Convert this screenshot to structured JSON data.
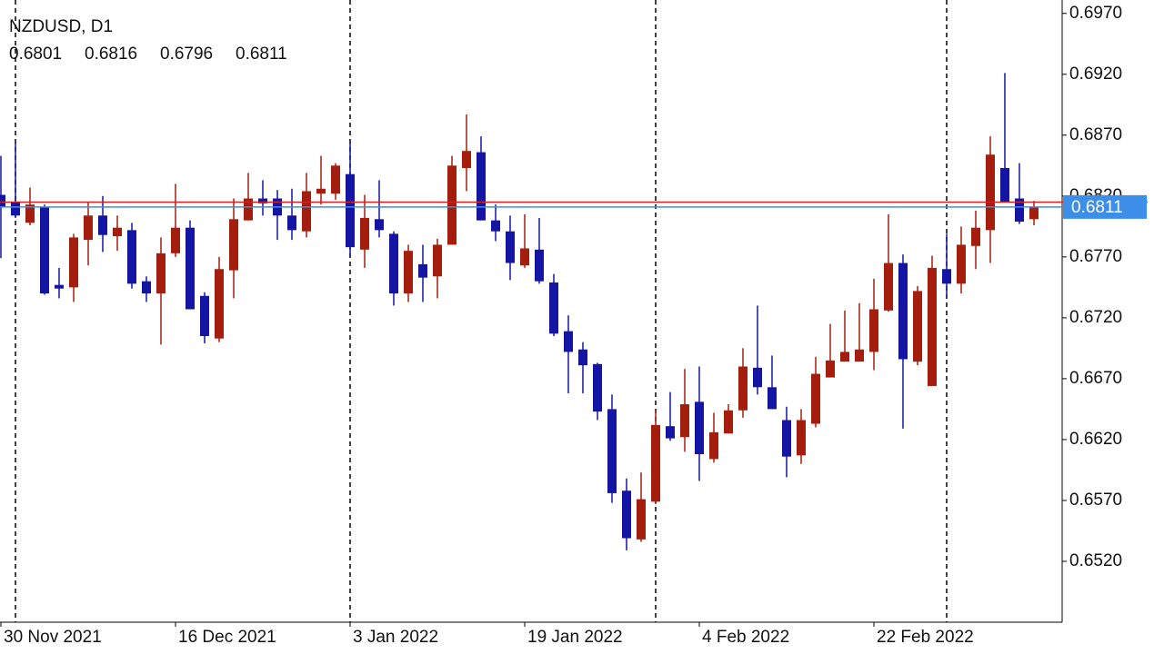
{
  "chart_data": {
    "type": "candlestick",
    "title": "NZDUSD, D1",
    "categories": [
      "30 Nov 2021",
      null,
      null,
      null,
      null,
      null,
      null,
      null,
      null,
      null,
      null,
      null,
      "16 Dec 2021",
      null,
      null,
      null,
      null,
      null,
      null,
      null,
      null,
      null,
      null,
      null,
      "3 Jan 2022",
      null,
      null,
      null,
      null,
      null,
      null,
      null,
      null,
      null,
      null,
      null,
      "19 Jan 2022",
      null,
      null,
      null,
      null,
      null,
      null,
      null,
      null,
      null,
      null,
      null,
      "4 Feb 2022",
      null,
      null,
      null,
      null,
      null,
      null,
      null,
      null,
      null,
      null,
      null,
      "22 Feb 2022",
      null,
      null,
      null,
      null,
      null,
      null,
      null,
      null,
      null,
      null,
      null
    ],
    "open": [
      0.6821,
      0.6815,
      0.6798,
      0.6811,
      0.6747,
      0.6745,
      0.6784,
      0.6804,
      0.6787,
      0.6792,
      0.675,
      0.674,
      0.6773,
      0.6794,
      0.6738,
      0.6703,
      0.6759,
      0.68,
      0.6818,
      0.6818,
      0.6804,
      0.6791,
      0.6822,
      0.6822,
      0.6838,
      0.6776,
      0.6801,
      0.6789,
      0.674,
      0.6764,
      0.6754,
      0.678,
      0.6843,
      0.6856,
      0.68,
      0.6791,
      0.6763,
      0.6776,
      0.6749,
      0.6709,
      0.6694,
      0.6682,
      0.6645,
      0.6578,
      0.6538,
      0.6569,
      0.6631,
      0.6622,
      0.6651,
      0.6604,
      0.6625,
      0.6644,
      0.6679,
      0.6663,
      0.6636,
      0.6607,
      0.6633,
      0.6671,
      0.6684,
      0.6684,
      0.6692,
      0.6726,
      0.6765,
      0.6684,
      0.6664,
      0.676,
      0.6748,
      0.6779,
      0.6792,
      0.6843,
      0.6818,
      0.6801
    ],
    "high": [
      0.6853,
      0.6864,
      0.6827,
      0.6813,
      0.6761,
      0.6789,
      0.6815,
      0.682,
      0.6804,
      0.6798,
      0.6754,
      0.6786,
      0.683,
      0.68,
      0.6741,
      0.677,
      0.6818,
      0.6839,
      0.6833,
      0.6825,
      0.6826,
      0.6839,
      0.6853,
      0.6847,
      0.6864,
      0.6821,
      0.6833,
      0.6791,
      0.678,
      0.678,
      0.6785,
      0.6853,
      0.6887,
      0.6869,
      0.6813,
      0.6804,
      0.6805,
      0.6802,
      0.6756,
      0.6722,
      0.67,
      0.6683,
      0.6657,
      0.6588,
      0.6593,
      0.6644,
      0.6659,
      0.6678,
      0.668,
      0.6642,
      0.6649,
      0.6695,
      0.673,
      0.6689,
      0.6647,
      0.6645,
      0.6688,
      0.6715,
      0.6726,
      0.6732,
      0.6752,
      0.6805,
      0.6772,
      0.6746,
      0.6771,
      0.6789,
      0.6795,
      0.6808,
      0.6869,
      0.6921,
      0.6847,
      0.6816
    ],
    "low": [
      0.6769,
      0.6802,
      0.6796,
      0.6739,
      0.6736,
      0.6733,
      0.6763,
      0.6774,
      0.6775,
      0.6744,
      0.6733,
      0.6698,
      0.677,
      0.6727,
      0.6699,
      0.67,
      0.6736,
      0.68,
      0.6804,
      0.6784,
      0.6784,
      0.6786,
      0.6813,
      0.6817,
      0.6771,
      0.6761,
      0.6786,
      0.673,
      0.6733,
      0.6733,
      0.6736,
      0.678,
      0.6824,
      0.68,
      0.6783,
      0.6751,
      0.6761,
      0.6748,
      0.6705,
      0.6658,
      0.6658,
      0.6636,
      0.6568,
      0.6529,
      0.6536,
      0.6567,
      0.6619,
      0.661,
      0.6586,
      0.6601,
      0.6625,
      0.6638,
      0.6657,
      0.6645,
      0.6589,
      0.66,
      0.663,
      0.6671,
      0.6684,
      0.6685,
      0.6677,
      0.6725,
      0.6629,
      0.6681,
      0.6664,
      0.6737,
      0.674,
      0.676,
      0.6765,
      0.6815,
      0.6797,
      0.6796
    ],
    "close": [
      0.6811,
      0.6804,
      0.6813,
      0.674,
      0.6744,
      0.6786,
      0.6804,
      0.6788,
      0.6794,
      0.6748,
      0.674,
      0.6773,
      0.6794,
      0.6727,
      0.6705,
      0.676,
      0.6801,
      0.6818,
      0.6814,
      0.6804,
      0.6792,
      0.6824,
      0.6826,
      0.6845,
      0.6778,
      0.6802,
      0.6792,
      0.674,
      0.6775,
      0.6753,
      0.678,
      0.6845,
      0.6857,
      0.68,
      0.6791,
      0.6765,
      0.6777,
      0.675,
      0.6707,
      0.6692,
      0.6681,
      0.6643,
      0.6576,
      0.6539,
      0.6571,
      0.6632,
      0.6621,
      0.6649,
      0.6608,
      0.6626,
      0.6644,
      0.668,
      0.6663,
      0.6645,
      0.6606,
      0.6636,
      0.6674,
      0.6685,
      0.6692,
      0.6694,
      0.6727,
      0.6765,
      0.6686,
      0.6742,
      0.6761,
      0.6748,
      0.678,
      0.6794,
      0.6854,
      0.6815,
      0.6799,
      0.6811
    ],
    "up_color": "#a51d0d",
    "down_color": "#1414a5",
    "bid_color": "#3d8ee8",
    "ask_color": "#d42020",
    "ask": 0.6815,
    "period_separators": [
      1,
      24,
      45,
      65
    ],
    "ylim": [
      0.647,
      0.6981
    ],
    "yticks": [
      {
        "value": 0.652,
        "label": "0.6520"
      },
      {
        "value": 0.657,
        "label": "0.6570"
      },
      {
        "value": 0.662,
        "label": "0.6620"
      },
      {
        "value": 0.667,
        "label": "0.6670"
      },
      {
        "value": 0.672,
        "label": "0.6720"
      },
      {
        "value": 0.677,
        "label": "0.6770"
      },
      {
        "value": 0.682,
        "label": "0.6820"
      },
      {
        "value": 0.687,
        "label": "0.6870"
      },
      {
        "value": 0.692,
        "label": "0.6920"
      },
      {
        "value": 0.697,
        "label": "0.6970"
      }
    ]
  }
}
